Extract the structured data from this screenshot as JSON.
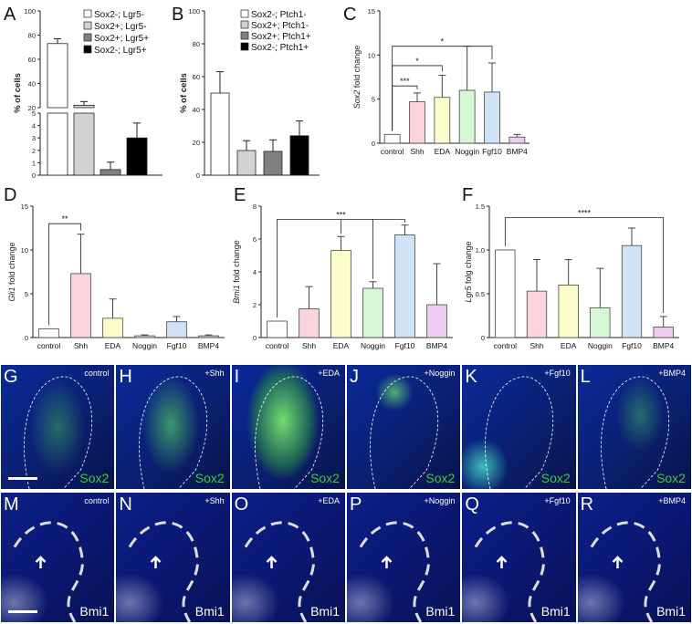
{
  "panel_letters": {
    "A": "A",
    "B": "B",
    "C": "C",
    "D": "D",
    "E": "E",
    "F": "F",
    "G": "G",
    "H": "H",
    "I": "I",
    "J": "J",
    "K": "K",
    "L": "L",
    "M": "M",
    "N": "N",
    "O": "O",
    "P": "P",
    "Q": "Q",
    "R": "R"
  },
  "colors": {
    "white_bar": "#ffffff",
    "light_gray": "#d2d2d2",
    "dark_gray": "#808080",
    "black": "#000000",
    "pink": "#fbd3dd",
    "yellow": "#fdfdcc",
    "green": "#d4f7d4",
    "blue": "#cfe2f6",
    "purple": "#eeccf0",
    "sox2_green": "#3ccc3c",
    "bmi1_white": "#ffffff"
  },
  "chart_data": [
    {
      "id": "A",
      "type": "bar",
      "ylabel": "% of cells",
      "y_break": {
        "lower": [
          0,
          5
        ],
        "upper": [
          20,
          100
        ]
      },
      "yticks_lower": [
        "0",
        "1",
        "2",
        "3",
        "4",
        "5"
      ],
      "yticks_upper": [
        "20",
        "40",
        "60",
        "80",
        "100"
      ],
      "legend": [
        "Sox2-; Lgr5-",
        "Sox2+; Lgr5-",
        "Sox2+; Lgr5+",
        "Sox2-; Lgr5+"
      ],
      "series_colors": [
        "#ffffff",
        "#d2d2d2",
        "#808080",
        "#000000"
      ],
      "values": [
        73,
        22,
        0.45,
        3.0
      ],
      "errors": [
        4,
        3,
        0.6,
        1.2
      ]
    },
    {
      "id": "B",
      "type": "bar",
      "ylabel": "% of cells",
      "ylim": [
        0,
        100
      ],
      "yticks": [
        "0",
        "20",
        "40",
        "60",
        "80",
        "100"
      ],
      "legend": [
        "Sox2-; Ptch1-",
        "Sox2+; Ptch1-",
        "Sox2+; Ptch1+",
        "Sox2-; Ptch1+"
      ],
      "series_colors": [
        "#ffffff",
        "#d2d2d2",
        "#808080",
        "#000000"
      ],
      "values": [
        50,
        15,
        14.5,
        24
      ],
      "errors": [
        13,
        6,
        7,
        9
      ]
    },
    {
      "id": "C",
      "type": "bar",
      "ylabel_italic": "Sox2",
      "ylabel_rest": " fold change",
      "ylim": [
        0,
        15
      ],
      "yticks": [
        "0",
        "5",
        "10",
        "15"
      ],
      "categories": [
        "control",
        "Shh",
        "EDA",
        "Noggin",
        "Fgf10",
        "BMP4"
      ],
      "values": [
        1.0,
        4.7,
        5.2,
        6.0,
        5.8,
        0.7
      ],
      "errors": [
        0,
        1.0,
        2.5,
        5.0,
        3.3,
        0.3
      ],
      "bar_colors": [
        "#ffffff",
        "#fbd3dd",
        "#fdfdcc",
        "#d4f7d4",
        "#cfe2f6",
        "#eeccf0"
      ],
      "significance": [
        {
          "from": 0,
          "to": 1,
          "label": "***",
          "y": 6.5
        },
        {
          "from": 0,
          "to": 2,
          "label": "*",
          "y": 8.8
        },
        {
          "from": 0,
          "to": 4,
          "label": "*",
          "y": 11.0
        }
      ]
    },
    {
      "id": "D",
      "type": "bar",
      "ylabel_italic": "Gli1",
      "ylabel_rest": " fold change",
      "ylim": [
        0,
        15
      ],
      "yticks": [
        "0",
        "5",
        "10",
        "15"
      ],
      "categories": [
        "control",
        "Shh",
        "EDA",
        "Noggin",
        "Fgf10",
        "BMP4"
      ],
      "values": [
        1.0,
        7.3,
        2.2,
        0.2,
        1.8,
        0.2
      ],
      "errors": [
        0,
        4.5,
        2.2,
        0.1,
        0.6,
        0.1
      ],
      "bar_colors": [
        "#ffffff",
        "#fbd3dd",
        "#fdfdcc",
        "#d4f7d4",
        "#cfe2f6",
        "#eeccf0"
      ],
      "significance": [
        {
          "from": 0,
          "to": 1,
          "label": "**",
          "y": 13.0
        }
      ]
    },
    {
      "id": "E",
      "type": "bar",
      "ylabel_italic": "Bmi1",
      "ylabel_rest": " fold change",
      "ylim": [
        0,
        8
      ],
      "yticks": [
        "0",
        "2",
        "4",
        "6",
        "8"
      ],
      "categories": [
        "control",
        "Shh",
        "EDA",
        "Noggin",
        "Fgf10",
        "BMP4"
      ],
      "values": [
        1.0,
        1.75,
        5.3,
        3.0,
        6.25,
        2.0
      ],
      "errors": [
        0,
        1.35,
        0.85,
        0.4,
        0.6,
        2.5
      ],
      "bar_colors": [
        "#ffffff",
        "#fbd3dd",
        "#fdfdcc",
        "#d4f7d4",
        "#cfe2f6",
        "#eeccf0"
      ],
      "significance_group": {
        "control": 0,
        "targets": [
          2,
          3,
          4
        ],
        "label": "***",
        "y": 7.2
      }
    },
    {
      "id": "F",
      "type": "bar",
      "ylabel_italic": "Lgr5",
      "ylabel_rest": " folg change",
      "ylim": [
        0,
        1.5
      ],
      "yticks": [
        "0",
        "0.5",
        "1.0",
        "1.5"
      ],
      "categories": [
        "control",
        "Shh",
        "EDA",
        "Noggin",
        "Fgf10",
        "BMP4"
      ],
      "values": [
        1.0,
        0.53,
        0.6,
        0.34,
        1.05,
        0.12
      ],
      "errors": [
        0,
        0.36,
        0.29,
        0.45,
        0.2,
        0.12
      ],
      "bar_colors": [
        "#ffffff",
        "#fbd3dd",
        "#fdfdcc",
        "#d4f7d4",
        "#cfe2f6",
        "#eeccf0"
      ],
      "significance": [
        {
          "from": 0,
          "to": 5,
          "label": "****",
          "y": 1.37
        }
      ]
    }
  ],
  "micrographs_top": [
    {
      "letter": "G",
      "label": "control",
      "stain": "Sox2"
    },
    {
      "letter": "H",
      "label": "+Shh",
      "stain": "Sox2"
    },
    {
      "letter": "I",
      "label": "+EDA",
      "stain": "Sox2"
    },
    {
      "letter": "J",
      "label": "+Noggin",
      "stain": "Sox2"
    },
    {
      "letter": "K",
      "label": "+Fgf10",
      "stain": "Sox2"
    },
    {
      "letter": "L",
      "label": "+BMP4",
      "stain": "Sox2"
    }
  ],
  "micrographs_bottom": [
    {
      "letter": "M",
      "label": "control",
      "stain": "Bmi1"
    },
    {
      "letter": "N",
      "label": "+Shh",
      "stain": "Bmi1"
    },
    {
      "letter": "O",
      "label": "+EDA",
      "stain": "Bmi1"
    },
    {
      "letter": "P",
      "label": "+Noggin",
      "stain": "Bmi1"
    },
    {
      "letter": "Q",
      "label": "+Fgf10",
      "stain": "Bmi1"
    },
    {
      "letter": "R",
      "label": "+BMP4",
      "stain": "Bmi1"
    }
  ]
}
